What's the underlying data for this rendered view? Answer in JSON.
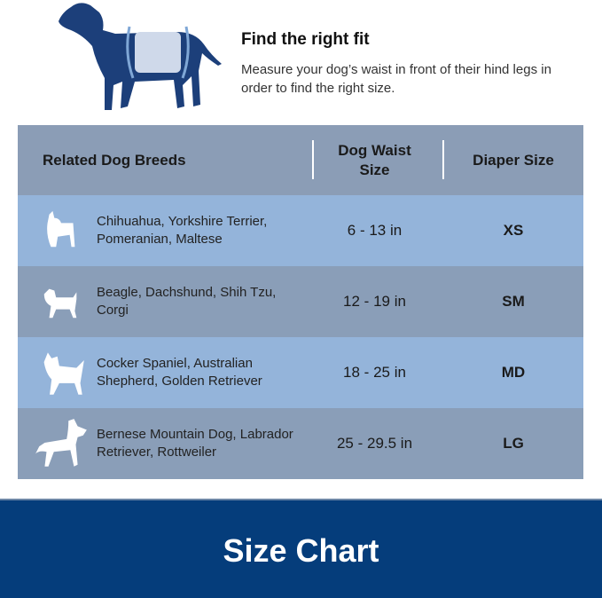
{
  "header": {
    "title": "Find the right fit",
    "description": "Measure your dog’s waist in front of their hind legs in order to find the right size."
  },
  "table": {
    "columns": [
      "Related Dog Breeds",
      "Dog Waist Size",
      "Diaper Size"
    ],
    "rows": [
      {
        "breeds": "Chihuahua, Yorkshire Terrier, Pomeranian, Maltese",
        "waist": "6 - 13 in",
        "size": "XS",
        "icon": "french-bulldog-icon"
      },
      {
        "breeds": "Beagle, Dachshund, Shih Tzu, Corgi",
        "waist": "12 - 19 in",
        "size": "SM",
        "icon": "small-dog-icon"
      },
      {
        "breeds": "Cocker Spaniel, Australian Shepherd, Golden Retriever",
        "waist": "18 - 25 in",
        "size": "MD",
        "icon": "medium-dog-icon"
      },
      {
        "breeds": "Bernese Mountain Dog, Labrador Retriever, Rottweiler",
        "waist": "25 - 29.5 in",
        "size": "LG",
        "icon": "large-dog-icon"
      }
    ]
  },
  "footer": {
    "title": "Size Chart"
  },
  "colors": {
    "navy": "#053d7b",
    "dog": "#1c3f7a",
    "light_row": "#94b4da",
    "dark_row": "#8a9eb8"
  }
}
